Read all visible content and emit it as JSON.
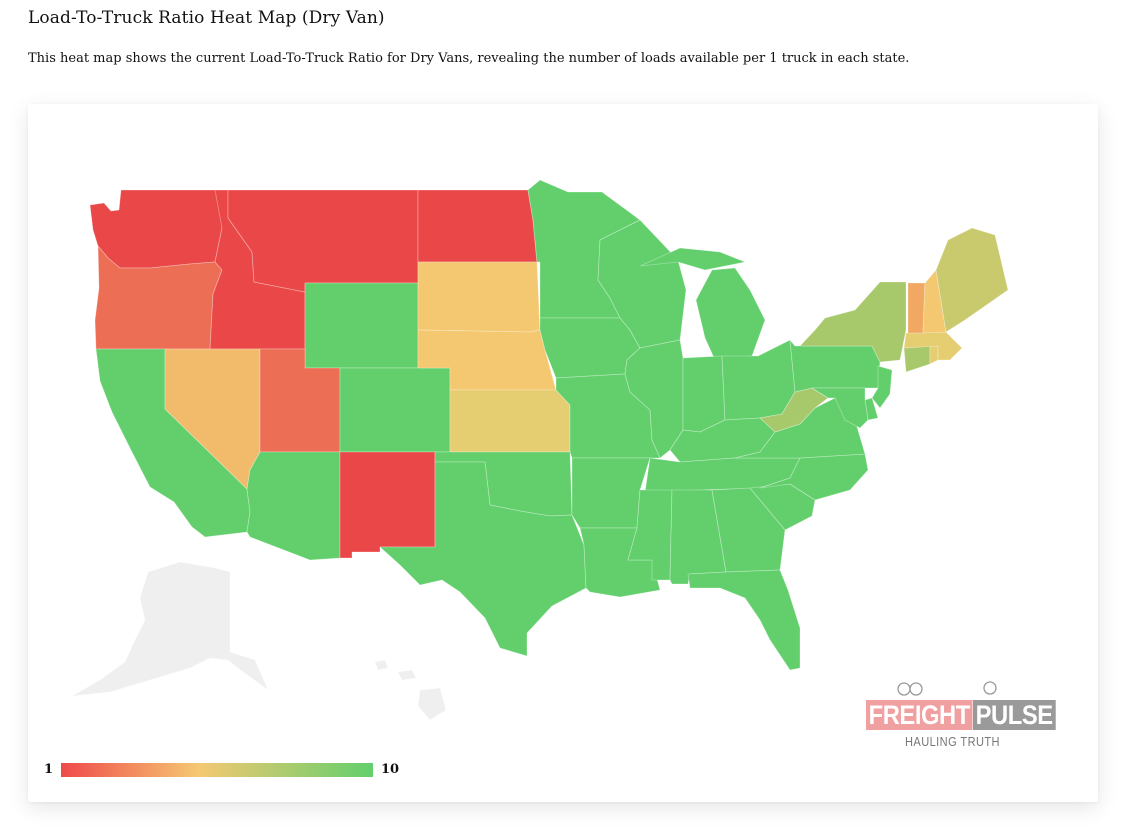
{
  "page": {
    "title": "Load-To-Truck Ratio Heat Map (Dry Van)",
    "description": "This heat map shows the current Load-To-Truck Ratio for Dry Vans, revealing the number of loads available per 1 truck in each state."
  },
  "legend": {
    "min_label": "1",
    "max_label": "10",
    "colors": [
      "#ef4a4a",
      "#f5c872",
      "#62cf6c"
    ]
  },
  "logo": {
    "word1": "FREIGHT",
    "word2": "PULSE",
    "tagline": "HAULING TRUTH"
  },
  "colors": {
    "red": "#ea4848",
    "red_orange": "#ec6e54",
    "orange": "#f0a862",
    "amber": "#f2bb6c",
    "yellow": "#f3c870",
    "khaki": "#e5cd72",
    "olive": "#c9ca6e",
    "yellow_green": "#a7c96c",
    "green": "#62cf6c",
    "no_data": "#efefef"
  },
  "states": [
    {
      "state": "WA",
      "color": "red"
    },
    {
      "state": "OR",
      "color": "red_orange"
    },
    {
      "state": "CA",
      "color": "green"
    },
    {
      "state": "ID",
      "color": "red"
    },
    {
      "state": "NV",
      "color": "amber"
    },
    {
      "state": "MT",
      "color": "red"
    },
    {
      "state": "WY",
      "color": "green"
    },
    {
      "state": "UT",
      "color": "red_orange"
    },
    {
      "state": "AZ",
      "color": "green"
    },
    {
      "state": "CO",
      "color": "green"
    },
    {
      "state": "NM",
      "color": "red"
    },
    {
      "state": "ND",
      "color": "red"
    },
    {
      "state": "SD",
      "color": "yellow"
    },
    {
      "state": "NE",
      "color": "yellow"
    },
    {
      "state": "KS",
      "color": "khaki"
    },
    {
      "state": "OK",
      "color": "green"
    },
    {
      "state": "TX",
      "color": "green"
    },
    {
      "state": "MN",
      "color": "green"
    },
    {
      "state": "IA",
      "color": "green"
    },
    {
      "state": "MO",
      "color": "green"
    },
    {
      "state": "AR",
      "color": "green"
    },
    {
      "state": "LA",
      "color": "green"
    },
    {
      "state": "WI",
      "color": "green"
    },
    {
      "state": "IL",
      "color": "green"
    },
    {
      "state": "MI",
      "color": "green"
    },
    {
      "state": "IN",
      "color": "green"
    },
    {
      "state": "OH",
      "color": "green"
    },
    {
      "state": "KY",
      "color": "green"
    },
    {
      "state": "TN",
      "color": "green"
    },
    {
      "state": "MS",
      "color": "green"
    },
    {
      "state": "AL",
      "color": "green"
    },
    {
      "state": "GA",
      "color": "green"
    },
    {
      "state": "FL",
      "color": "green"
    },
    {
      "state": "SC",
      "color": "green"
    },
    {
      "state": "NC",
      "color": "green"
    },
    {
      "state": "VA",
      "color": "green"
    },
    {
      "state": "WV",
      "color": "yellow_green"
    },
    {
      "state": "PA",
      "color": "green"
    },
    {
      "state": "NY",
      "color": "yellow_green"
    },
    {
      "state": "NJ",
      "color": "green"
    },
    {
      "state": "DE",
      "color": "green"
    },
    {
      "state": "MD",
      "color": "green"
    },
    {
      "state": "CT",
      "color": "yellow_green"
    },
    {
      "state": "RI",
      "color": "khaki"
    },
    {
      "state": "MA",
      "color": "khaki"
    },
    {
      "state": "VT",
      "color": "orange"
    },
    {
      "state": "NH",
      "color": "yellow"
    },
    {
      "state": "ME",
      "color": "olive"
    },
    {
      "state": "AK",
      "color": "no_data"
    },
    {
      "state": "HI",
      "color": "no_data"
    }
  ]
}
